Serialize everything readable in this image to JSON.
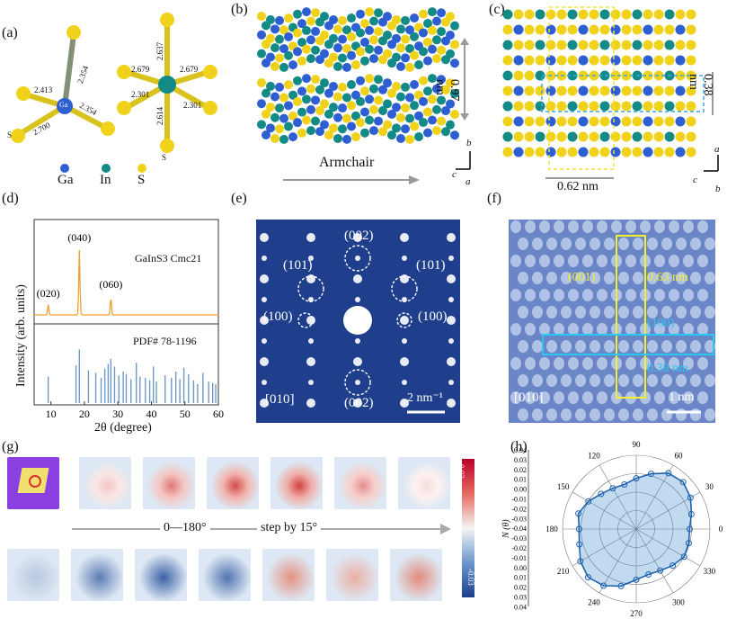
{
  "panel_labels": {
    "a": "(a)",
    "b": "(b)",
    "c": "(c)",
    "d": "(d)",
    "e": "(e)",
    "f": "(f)",
    "g": "(g)",
    "h": "(h)"
  },
  "panel_a": {
    "left_center": "Ga",
    "left_bottom_s": "S",
    "bonds_left": [
      "2.413",
      "2.354",
      "2.354",
      "2.700"
    ],
    "bonds_right": [
      "2.637",
      "2.679",
      "2.679",
      "2.301",
      "2.301",
      "2.614"
    ],
    "right_bottom_s": "S",
    "legend": [
      {
        "label": "Ga",
        "color": "#2d5fd3"
      },
      {
        "label": "In",
        "color": "#128a86"
      },
      {
        "label": "S",
        "color": "#f0d21a"
      }
    ]
  },
  "panel_b": {
    "interlayer": "0.97 nm",
    "direction": "Armchair",
    "axes": {
      "b": "b",
      "c": "c",
      "a": "a"
    }
  },
  "panel_c": {
    "dim_vertical": "0.38 nm",
    "dim_horizontal": "0.62 nm",
    "axes": {
      "a": "a",
      "c": "c",
      "b": "b"
    }
  },
  "panel_d": {
    "chart_data": {
      "type": "line",
      "title": "GaInS3 Cmc21",
      "xlabel": "2θ (degree)",
      "ylabel": "Intensity (arb. units)",
      "xlim": [
        5,
        60
      ],
      "xticks": [
        10,
        20,
        30,
        40,
        50,
        60
      ],
      "peaks": [
        {
          "x": 9.2,
          "label": "(020)"
        },
        {
          "x": 18.5,
          "label": "(040)"
        },
        {
          "x": 27.9,
          "label": "(060)"
        }
      ],
      "reference_label": "PDF# 78-1196",
      "reference_lines": [
        9.2,
        17.5,
        18.5,
        21.2,
        23.4,
        25.0,
        26.1,
        27.1,
        27.9,
        29.0,
        30.3,
        31.6,
        32.5,
        33.9,
        35.5,
        36.6,
        38.2,
        39.5,
        40.6,
        41.5,
        44.1,
        46.0,
        47.3,
        48.5,
        49.7,
        51.1,
        52.6,
        53.8,
        55.4,
        57.1,
        58.3,
        59.2
      ],
      "reference_heights": [
        0.42,
        0.6,
        0.85,
        0.52,
        0.48,
        0.4,
        0.55,
        0.62,
        0.7,
        0.58,
        0.44,
        0.5,
        0.46,
        0.38,
        0.64,
        0.42,
        0.4,
        0.36,
        0.58,
        0.34,
        0.44,
        0.4,
        0.5,
        0.38,
        0.56,
        0.46,
        0.36,
        0.3,
        0.48,
        0.34,
        0.32,
        0.3
      ]
    }
  },
  "panel_e": {
    "spots": [
      "(002)",
      "(101)",
      "(101)",
      "(100)",
      "(100)",
      "(002)"
    ],
    "zone": "[010]",
    "scale": "2 nm⁻¹"
  },
  "panel_f": {
    "label_001": "(001)",
    "d_001": "0.63 nm",
    "label_100": "(100)",
    "d_100": "0.38 nm",
    "zone": "[010]",
    "scale": "1 nm"
  },
  "panel_g": {
    "arrow_text": "0—180°",
    "step_text": "step by 15°",
    "colorbar_max": "0.03",
    "colorbar_min": "-0.03"
  },
  "panel_h": {
    "chart_data": {
      "type": "scatter",
      "subtype": "polar",
      "ylabel": "N (θ)",
      "r_ticks": [
        "0.04",
        "0.03",
        "0.02",
        "0.01",
        "0.00",
        "-0.01",
        "-0.02",
        "-0.03",
        "-0.04",
        "-0.03",
        "-0.02",
        "-0.01",
        "0.00",
        "0.01",
        "0.02",
        "0.03",
        "0.04"
      ],
      "angle_ticks": [
        "90",
        "60",
        "30",
        "0",
        "330",
        "300",
        "270",
        "240",
        "210",
        "180",
        "150",
        "120"
      ],
      "points_deg": [
        0,
        15,
        30,
        45,
        60,
        75,
        90,
        105,
        120,
        135,
        150,
        165,
        180,
        195,
        210,
        225,
        240,
        255,
        270,
        285,
        300,
        315,
        330,
        345
      ],
      "points_r": [
        0.018,
        0.022,
        0.028,
        0.032,
        0.03,
        0.022,
        0.015,
        0.01,
        0.011,
        0.014,
        0.02,
        0.025,
        0.022,
        0.024,
        0.03,
        0.034,
        0.031,
        0.024,
        0.015,
        0.011,
        0.012,
        0.016,
        0.02,
        0.019
      ]
    }
  }
}
